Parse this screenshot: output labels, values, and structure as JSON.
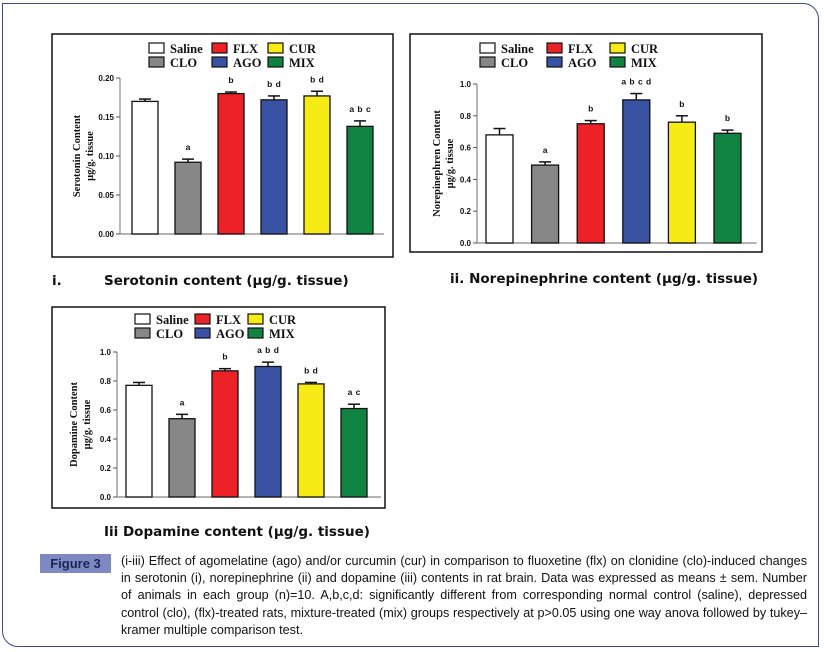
{
  "chart_data": [
    {
      "type": "bar",
      "panel": "i.",
      "title": "Serotonin content (μg/g. tissue)",
      "ylabel_line1": "Serotonin Content",
      "ylabel_line2": "μg/g. tissue",
      "categories": [
        "Saline",
        "CLO",
        "FLX",
        "AGO",
        "CUR",
        "MIX"
      ],
      "values": [
        0.17,
        0.092,
        0.18,
        0.172,
        0.177,
        0.138
      ],
      "errors": [
        0.003,
        0.004,
        0.002,
        0.005,
        0.006,
        0.007
      ],
      "annotations": [
        "",
        "a",
        "b",
        "b d",
        "b d",
        "a b c"
      ],
      "ylim": [
        0,
        0.2
      ],
      "yticks": [
        "0.00",
        "0.05",
        "0.10",
        "0.15",
        "0.20"
      ],
      "legend_position": "top"
    },
    {
      "type": "bar",
      "panel": "ii.",
      "title": "ii. Norepinephrine content (μg/g. tissue)",
      "ylabel_line1": "Norepinephren Content",
      "ylabel_line2": "μg/g. tissue",
      "categories": [
        "Saline",
        "CLO",
        "FLX",
        "AGO",
        "CUR",
        "MIX"
      ],
      "values": [
        0.68,
        0.49,
        0.75,
        0.9,
        0.76,
        0.69
      ],
      "errors": [
        0.04,
        0.02,
        0.02,
        0.04,
        0.04,
        0.02
      ],
      "annotations": [
        "",
        "a",
        "b",
        "a b c d",
        "b",
        "b"
      ],
      "ylim": [
        0,
        1.0
      ],
      "yticks": [
        "0.0",
        "0.2",
        "0.4",
        "0.6",
        "0.8",
        "1.0"
      ],
      "legend_position": "top"
    },
    {
      "type": "bar",
      "panel": "iii",
      "title": "Iii Dopamine content (μg/g. tissue)",
      "ylabel_line1": "Dopamine Content",
      "ylabel_line2": "μg/g. tissue",
      "categories": [
        "Saline",
        "CLO",
        "FLX",
        "AGO",
        "CUR",
        "MIX"
      ],
      "values": [
        0.77,
        0.54,
        0.87,
        0.9,
        0.78,
        0.61
      ],
      "errors": [
        0.02,
        0.03,
        0.015,
        0.03,
        0.01,
        0.03
      ],
      "annotations": [
        "",
        "a",
        "b",
        "a b d",
        "b d",
        "a c"
      ],
      "ylim": [
        0,
        1.0
      ],
      "yticks": [
        "0.0",
        "0.2",
        "0.4",
        "0.6",
        "0.8",
        "1.0"
      ],
      "legend_position": "top"
    }
  ],
  "legend": [
    {
      "label": "Saline",
      "color": "#ffffff"
    },
    {
      "label": "CLO",
      "color": "#878787"
    },
    {
      "label": "FLX",
      "color": "#ec2227"
    },
    {
      "label": "AGO",
      "color": "#3a52a3"
    },
    {
      "label": "CUR",
      "color": "#f6eb14"
    },
    {
      "label": "MIX",
      "color": "#108343"
    }
  ],
  "figure": {
    "label": "Figure 3",
    "caption": "(i-iii) Effect of agomelatine (ago) and/or curcumin (cur) in comparison to fluoxetine (flx) on clonidine (clo)-induced changes in serotonin (i), norepinephrine (ii) and dopamine (iii) contents in rat brain. Data was expressed as means ± sem. Number of animals in each group (n)=10. A,b,c,d: significantly different from corresponding normal control (saline), depressed control (clo), (flx)-treated rats, mixture-treated (mix) groups respectively at p>0.05 using one way anova followed by tukey–kramer multiple comparison test."
  },
  "colors": {
    "frame": "#3b4a8c",
    "label_bg": "#7e89c4"
  }
}
